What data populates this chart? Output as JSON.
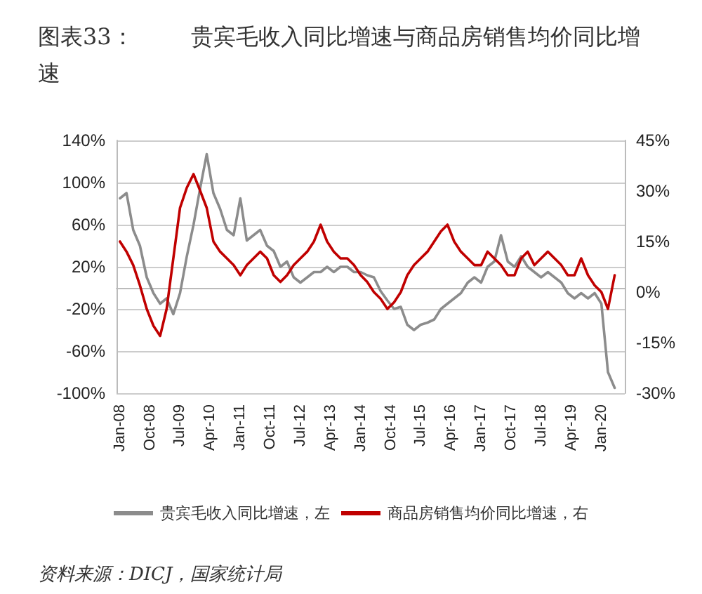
{
  "chart_data": {
    "type": "line",
    "title": "图表33：        贵宾毛收入同比增速与商品房销售均价同比增速",
    "annotations": [
      "资料来源：DICJ，国家统计局"
    ],
    "x": [
      "2008-01",
      "2008-03",
      "2008-05",
      "2008-07",
      "2008-09",
      "2008-11",
      "2009-01",
      "2009-03",
      "2009-05",
      "2009-07",
      "2009-09",
      "2009-11",
      "2010-01",
      "2010-03",
      "2010-05",
      "2010-07",
      "2010-09",
      "2010-11",
      "2011-01",
      "2011-03",
      "2011-05",
      "2011-07",
      "2011-09",
      "2011-11",
      "2012-01",
      "2012-03",
      "2012-05",
      "2012-07",
      "2012-09",
      "2012-11",
      "2013-01",
      "2013-03",
      "2013-05",
      "2013-07",
      "2013-09",
      "2013-11",
      "2014-01",
      "2014-03",
      "2014-05",
      "2014-07",
      "2014-09",
      "2014-11",
      "2015-01",
      "2015-03",
      "2015-05",
      "2015-07",
      "2015-09",
      "2015-11",
      "2016-01",
      "2016-03",
      "2016-05",
      "2016-07",
      "2016-09",
      "2016-11",
      "2017-01",
      "2017-03",
      "2017-05",
      "2017-07",
      "2017-09",
      "2017-11",
      "2018-01",
      "2018-03",
      "2018-05",
      "2018-07",
      "2018-09",
      "2018-11",
      "2019-01",
      "2019-03",
      "2019-05",
      "2019-07",
      "2019-09",
      "2019-11",
      "2020-01",
      "2020-03",
      "2020-05"
    ],
    "series": [
      {
        "name": "贵宾毛收入同比增速，左",
        "color": "#8c8c8c",
        "values": [
          85,
          90,
          55,
          40,
          10,
          -5,
          -15,
          -10,
          -25,
          -5,
          30,
          60,
          95,
          127,
          90,
          75,
          55,
          50,
          85,
          45,
          50,
          55,
          40,
          35,
          20,
          25,
          10,
          5,
          10,
          15,
          15,
          20,
          15,
          20,
          20,
          15,
          15,
          12,
          10,
          -3,
          -12,
          -20,
          -18,
          -35,
          -40,
          -35,
          -33,
          -30,
          -20,
          -15,
          -10,
          -5,
          5,
          10,
          5,
          20,
          25,
          50,
          25,
          20,
          30,
          20,
          15,
          10,
          15,
          10,
          5,
          -5,
          -10,
          -5,
          -10,
          -5,
          -15,
          -80,
          -95
        ]
      },
      {
        "name": "商品房销售均价同比增速，右",
        "color": "#c00000",
        "axis": "y2",
        "values": [
          15,
          12,
          8,
          2,
          -5,
          -10,
          -13,
          -5,
          10,
          25,
          31,
          35,
          30,
          25,
          15,
          12,
          10,
          8,
          5,
          8,
          10,
          12,
          10,
          5,
          3,
          5,
          8,
          10,
          12,
          15,
          20,
          15,
          12,
          10,
          10,
          8,
          5,
          3,
          0,
          -2,
          -5,
          -3,
          0,
          5,
          8,
          10,
          12,
          15,
          18,
          20,
          15,
          12,
          10,
          8,
          8,
          12,
          10,
          8,
          5,
          5,
          10,
          12,
          8,
          10,
          12,
          10,
          8,
          5,
          5,
          10,
          5,
          2,
          0,
          -5,
          5
        ]
      }
    ],
    "xlim": [
      "2007-12",
      "2020-08"
    ],
    "xticks": [
      {
        "value": "2008-01",
        "label": "Jan-08"
      },
      {
        "value": "2008-10",
        "label": "Oct-08"
      },
      {
        "value": "2009-07",
        "label": "Jul-09"
      },
      {
        "value": "2010-04",
        "label": "Apr-10"
      },
      {
        "value": "2011-01",
        "label": "Jan-11"
      },
      {
        "value": "2011-10",
        "label": "Oct-11"
      },
      {
        "value": "2012-07",
        "label": "Jul-12"
      },
      {
        "value": "2013-04",
        "label": "Apr-13"
      },
      {
        "value": "2014-01",
        "label": "Jan-14"
      },
      {
        "value": "2014-10",
        "label": "Oct-14"
      },
      {
        "value": "2015-07",
        "label": "Jul-15"
      },
      {
        "value": "2016-04",
        "label": "Apr-16"
      },
      {
        "value": "2017-01",
        "label": "Jan-17"
      },
      {
        "value": "2017-10",
        "label": "Oct-17"
      },
      {
        "value": "2018-07",
        "label": "Jul-18"
      },
      {
        "value": "2019-04",
        "label": "Apr-19"
      },
      {
        "value": "2020-01",
        "label": "Jan-20"
      }
    ],
    "ylim": [
      -100,
      140
    ],
    "yticks": [
      {
        "value": -100,
        "label": "-100%"
      },
      {
        "value": -60,
        "label": "-60%"
      },
      {
        "value": -20,
        "label": "-20%"
      },
      {
        "value": 20,
        "label": "20%"
      },
      {
        "value": 60,
        "label": "60%"
      },
      {
        "value": 100,
        "label": "100%"
      },
      {
        "value": 140,
        "label": "140%"
      }
    ],
    "y2lim": [
      -30,
      45
    ],
    "y2ticks": [
      {
        "value": -30,
        "label": "-30%"
      },
      {
        "value": -15,
        "label": "-15%"
      },
      {
        "value": 0,
        "label": "0%"
      },
      {
        "value": 15,
        "label": "15%"
      },
      {
        "value": 30,
        "label": "30%"
      },
      {
        "value": 45,
        "label": "45%"
      }
    ],
    "grid": "y",
    "legend": "bottom",
    "marker": "none",
    "line_style": "solid"
  }
}
